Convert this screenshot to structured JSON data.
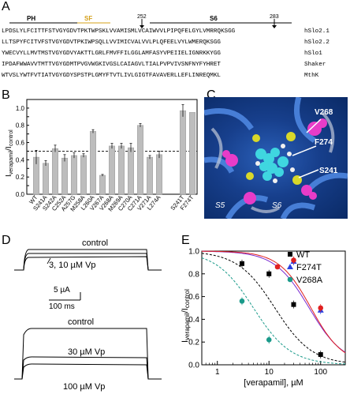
{
  "panels": {
    "a": "A",
    "b": "B",
    "c": "C",
    "d": "D",
    "e": "E"
  },
  "panel_a": {
    "labels": {
      "ph": "PH",
      "sf": "SF",
      "s6": "S6",
      "mark_left": "252",
      "mark_right": "283"
    },
    "sequences": [
      {
        "text": "LPDSLYLFCITTFSTVGYGDVTPKTWPSKLVVAMISMLVCAIWVVLPIPQFELGYLVMRRQKSGG",
        "name": "hSlo2.1"
      },
      {
        "text": "LLTSPYFCITVFSTVGYGDVTPKIWPSQLLVVIMICVALVVLPLQFEELVYLWMERQKSGG",
        "name": "hSlo2.2"
      },
      {
        "text": "YWECVYLLMVTMSTVGYGDVYAKTTLGRLFMVFFILGGLAMFASYVPEIIELIGNRKKYGG",
        "name": "hSlo1"
      },
      {
        "text": "IPDAFWWAVVTMTTVGYGDMTPVGVWGKIVGSLCAIAGVLTIALPVPVIVSNFNYFYHRET",
        "name": "Shaker"
      },
      {
        "text": "WTVSLYWTFVTIATVGYGDYSPSTPLGMYFTVTLIVLGIGTFAVAVERLLEFLINREQMKL",
        "name": "MthK"
      }
    ]
  },
  "chart_b": {
    "type": "bar",
    "ylabel": "I",
    "ylabel_sub": "verapamil",
    "ylabel_mid": "/I",
    "ylabel_sub2": "control",
    "ylim": [
      0,
      1.1
    ],
    "yticks": [
      "0.0",
      "0.1",
      "0.2",
      "0.3",
      "0.4",
      "0.5",
      "0.6",
      "0.7",
      "0.8",
      "0.9",
      "1.0"
    ],
    "dashed_level": 0.5,
    "categories": [
      "WT",
      "S241A",
      "S242A",
      "C252A",
      "A257G",
      "M258A",
      "L260A",
      "V267A",
      "V268A",
      "M269A",
      "C270A",
      "C271A",
      "V271A",
      "L274A",
      "S241T",
      "F274T"
    ],
    "values": [
      0.43,
      0.36,
      0.53,
      0.42,
      0.45,
      0.45,
      0.73,
      0.22,
      0.56,
      0.56,
      0.54,
      0.8,
      0.43,
      0.46,
      0.97,
      0.95
    ],
    "errors": [
      0.08,
      0.03,
      0.04,
      0.04,
      0.03,
      0.02,
      0.02,
      0.01,
      0.03,
      0.03,
      0.05,
      0.02,
      0.02,
      0.04,
      0.07,
      0.0
    ]
  },
  "panel_c": {
    "labels": {
      "v268": "V268",
      "f274": "F274",
      "s241": "S241",
      "s5": "S5",
      "s6": "S6"
    },
    "colors": {
      "bg": "#173f8c",
      "magenta": "#e83cc8",
      "yellow": "#d8d82a",
      "cyan": "#3fd6e0"
    }
  },
  "panel_d": {
    "top": {
      "label": "control",
      "label2": "3, 10 µM Vp"
    },
    "scale": {
      "current": "5 µA",
      "time": "100 ms"
    },
    "bottom": {
      "label": "control",
      "label2": "30 µM Vp",
      "label3": "100 µM Vp"
    }
  },
  "chart_e": {
    "type": "scatter",
    "ylabel": "I",
    "ylabel_sub": "verapamil",
    "ylabel_mid": "/I",
    "ylabel_sub2": "control",
    "xlabel": "[verapamil], µM",
    "xscale": "log",
    "xlim": [
      0.5,
      300
    ],
    "ylim": [
      0,
      1.0
    ],
    "yticks": [
      "0.0",
      "0.2",
      "0.4",
      "0.6",
      "0.8",
      "1.0"
    ],
    "xticks": [
      "1",
      "10",
      "100"
    ],
    "series": [
      {
        "name": "WT",
        "marker": "square",
        "color": "#000000",
        "fit_color": "#000000",
        "ic50": 13,
        "hill": 1.2,
        "x": [
          3,
          10,
          30,
          100
        ],
        "y": [
          0.89,
          0.8,
          0.53,
          0.09
        ]
      },
      {
        "name": "F274T",
        "marker": "triangle",
        "color": "#2a3fe0",
        "fit_color": "#7a2ad0",
        "ic50": 60,
        "hill": 1.3,
        "x": [
          30,
          100
        ],
        "y": [
          0.91,
          0.48
        ]
      },
      {
        "name": "",
        "marker": "circle",
        "color": "#e02020",
        "fit_color": "#e02020",
        "ic50": 65,
        "hill": 1.4,
        "x": [
          30,
          100
        ],
        "y": [
          0.92,
          0.5
        ]
      },
      {
        "name": "V268A",
        "marker": "circle",
        "color": "#1a9a8a",
        "fit_color": "#1a9a8a",
        "ic50": 5,
        "hill": 1.2,
        "x": [
          3,
          10
        ],
        "y": [
          0.56,
          0.22
        ]
      }
    ]
  }
}
